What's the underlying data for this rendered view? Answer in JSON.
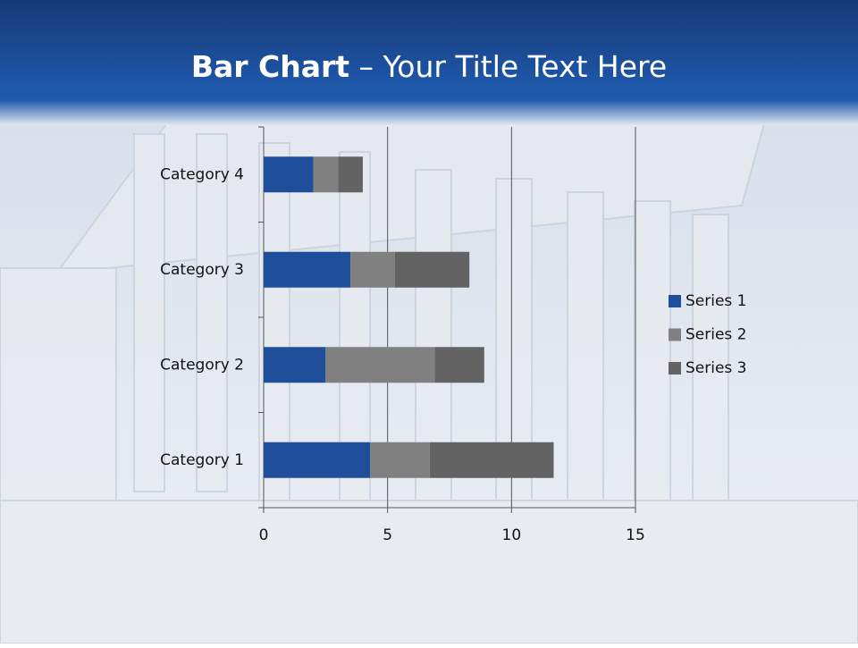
{
  "chart_data": {
    "type": "stacked-bar-horizontal",
    "title": {
      "bold": "Bar Chart",
      "rest": "– Your Title Text Here"
    },
    "categories": [
      "Category 1",
      "Category 2",
      "Category 3",
      "Category 4"
    ],
    "series": [
      {
        "name": "Series 1",
        "color": "#1f4e9a",
        "values": [
          4.3,
          2.5,
          3.5,
          2
        ]
      },
      {
        "name": "Series 2",
        "color": "#808080",
        "values": [
          2.4,
          4.4,
          1.8,
          1
        ]
      },
      {
        "name": "Series 3",
        "color": "#636363",
        "values": [
          5,
          2,
          3,
          1
        ]
      }
    ],
    "xlim": [
      0,
      15
    ],
    "xticks": [
      0,
      5,
      10,
      15
    ],
    "grid": true,
    "legend": "right"
  }
}
